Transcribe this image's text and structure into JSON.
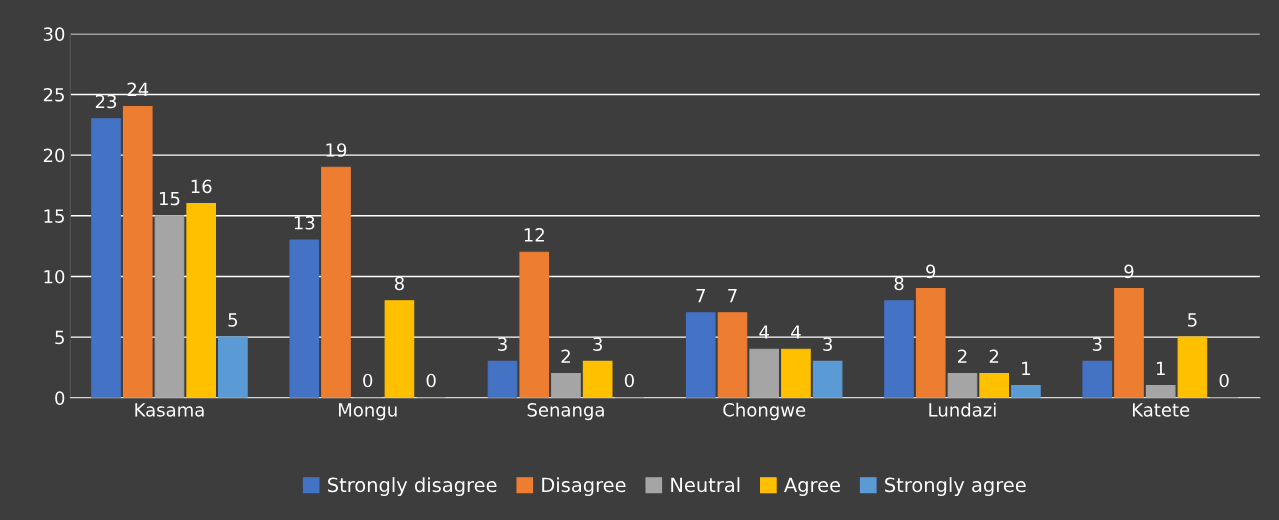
{
  "chart_data": {
    "type": "bar",
    "categories": [
      "Kasama",
      "Mongu",
      "Senanga",
      "Chongwe",
      "Lundazi",
      "Katete"
    ],
    "series": [
      {
        "name": "Strongly disagree",
        "color": "#4472c4",
        "values": [
          23,
          13,
          3,
          7,
          8,
          3
        ]
      },
      {
        "name": "Disagree",
        "color": "#ed7d31",
        "values": [
          24,
          19,
          12,
          7,
          9,
          9
        ]
      },
      {
        "name": "Neutral",
        "color": "#a5a5a5",
        "values": [
          15,
          0,
          2,
          4,
          2,
          1
        ]
      },
      {
        "name": "Agree",
        "color": "#ffc000",
        "values": [
          16,
          8,
          3,
          4,
          2,
          5
        ]
      },
      {
        "name": "Strongly agree",
        "color": "#5b9bd5",
        "values": [
          5,
          0,
          0,
          3,
          1,
          0
        ]
      }
    ],
    "ylim": [
      0,
      30
    ],
    "yticks": [
      0,
      5,
      10,
      15,
      20,
      25,
      30
    ],
    "grid": "y",
    "legend": "bottom",
    "data_labels": true
  }
}
